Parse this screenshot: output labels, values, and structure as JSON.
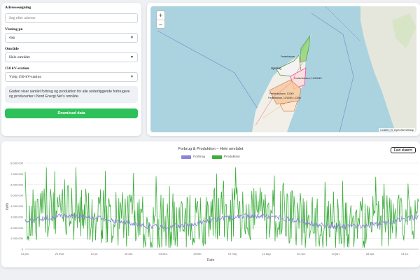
{
  "sidebar": {
    "address_label": "Adressesøgning",
    "address_placeholder": "Søg efter adresse",
    "resolution_label": "Visning pr.",
    "resolution_value": "dag",
    "area_label": "Område",
    "area_value": "Hele området",
    "station_label": "150 kV-station",
    "station_value": "Vælg 150-kV-station",
    "info_text": "Grafen viser samlet forbrug og produktion for alle underliggende forbrugere og producenter i Nord Energi Net's område.",
    "download_label": "Download data"
  },
  "map": {
    "zoom_in": "+",
    "zoom_out": "−",
    "attribution": "Leaflet | © OpenStreetMap",
    "region_labels": [
      "Frederikshavn ...",
      "Hjørring",
      "Frederikshavn, 10/150kV",
      "Frederikshavn, 132kV",
      "Frederikshavn, 10/150kV • 132kV"
    ],
    "colors": {
      "sea": "#aad3df",
      "land": "#f2efe9",
      "region_border": "#ff4da6",
      "region_fill_green": "#8ed36b",
      "region_fill_orange": "#f5a36b"
    }
  },
  "chart": {
    "title": "Forbrug & Produktion – Hele området",
    "fullscreen_label": "Fuld skærm",
    "ylabel": "kWh",
    "xlabel": "Dato"
  },
  "chart_data": {
    "type": "line",
    "x_ticks": [
      "01 jan.",
      "20 mar.",
      "10 jul.",
      "16 okt.",
      "03 dec.",
      "25 feb.",
      "19 maj",
      "11 aug.",
      "02 nov.",
      "23 jan.",
      "28 apr.",
      "13 jul."
    ],
    "ylim": [
      0,
      8000000
    ],
    "y_ticks": [
      0,
      1000000,
      2000000,
      3000000,
      4000000,
      5000000,
      6000000,
      7000000,
      8000000
    ],
    "y_tick_labels": [
      "0",
      "1.000.000",
      "2.000.000",
      "3.000.000",
      "4.000.000",
      "5.000.000",
      "6.000.000",
      "7.000.000",
      "8.000.000"
    ],
    "grid": true,
    "legend": "top-center",
    "series": [
      {
        "name": "Forbrug",
        "color": "#8a85d6",
        "summary": "daily values oscillating around 2,300,000–3,200,000 with a seasonal pattern"
      },
      {
        "name": "Produktion",
        "color": "#3cae3c",
        "summary": "daily values fluctuating strongly between about 200,000 and 7,600,000"
      }
    ]
  }
}
